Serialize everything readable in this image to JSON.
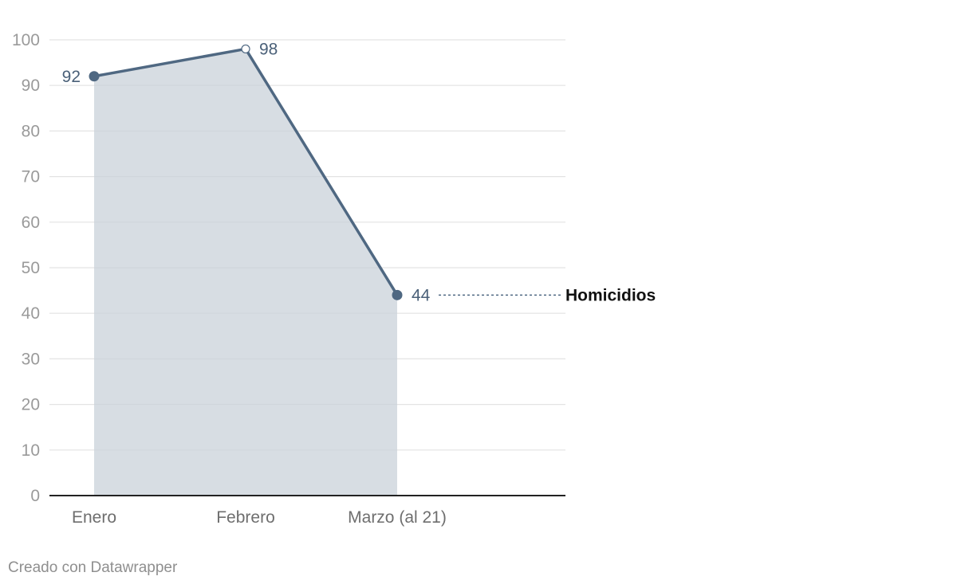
{
  "chart_data": {
    "type": "area",
    "categories": [
      "Enero",
      "Febrero",
      "Marzo (al 21)"
    ],
    "series": [
      {
        "name": "Homicidios",
        "values": [
          92,
          98,
          44
        ]
      }
    ],
    "data_labels": [
      "92",
      "98",
      "44"
    ],
    "yticks": [
      0,
      10,
      20,
      30,
      40,
      50,
      60,
      70,
      80,
      90,
      100
    ],
    "ylim": [
      0,
      100
    ],
    "grid": true,
    "legend": "inline-right",
    "colors": {
      "line": "#4f6882",
      "area": "#c9d2da",
      "grid": "#e3e3e3",
      "label": "#4a6078"
    }
  },
  "footer": {
    "credit": "Creado con Datawrapper"
  }
}
